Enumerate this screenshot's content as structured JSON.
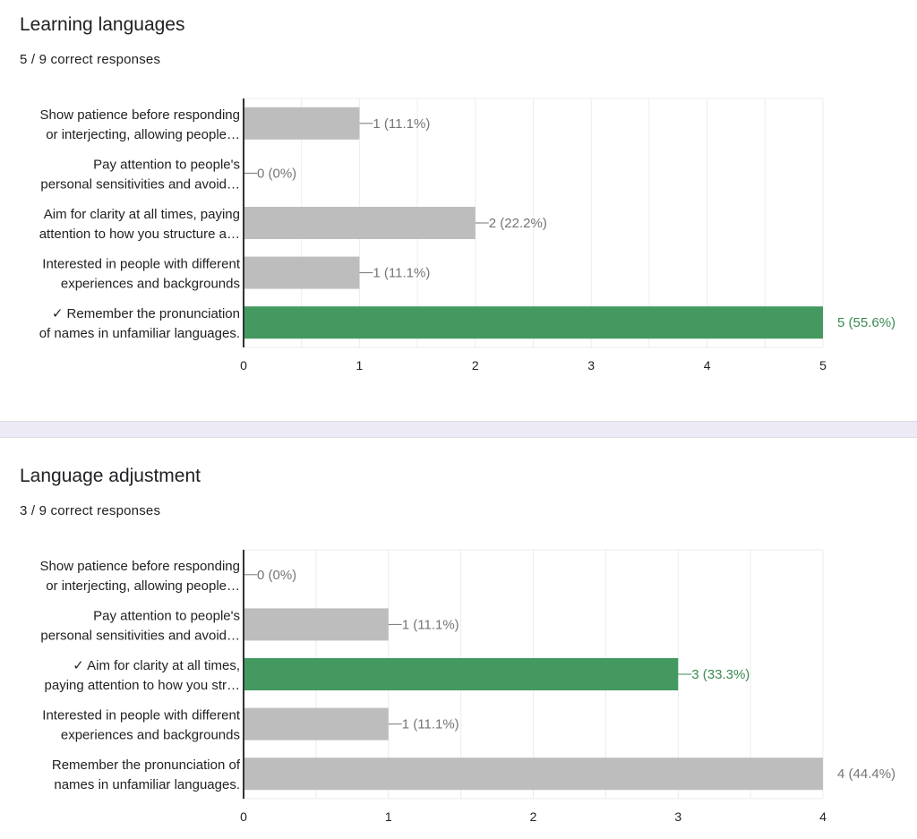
{
  "colors": {
    "bar": "#bdbdbd",
    "correct_bar": "#43995f",
    "label": "#757575",
    "correct_label": "#3a8a52",
    "grid": "#ececec",
    "axis": "#333333"
  },
  "chart_data": [
    {
      "type": "bar",
      "orientation": "horizontal",
      "title": "Learning languages",
      "subtitle": "5 / 9 correct responses",
      "categories": [
        [
          "Show patience before responding",
          "or interjecting, allowing people…"
        ],
        [
          "Pay attention to people's",
          "personal sensitivities and avoid…"
        ],
        [
          "Aim for clarity at all times, paying",
          "attention to how you structure a…"
        ],
        [
          "Interested in people with different",
          "experiences and backgrounds"
        ],
        [
          "✓ Remember the pronunciation",
          "of names in unfamiliar languages."
        ]
      ],
      "values": [
        1,
        0,
        2,
        1,
        5
      ],
      "value_labels": [
        "1 (11.1%)",
        "0 (0%)",
        "2 (22.2%)",
        "1 (11.1%)",
        "5 (55.6%)"
      ],
      "correct": [
        false,
        false,
        false,
        false,
        true
      ],
      "xlim": [
        0,
        5
      ],
      "xticks": [
        "0",
        "1",
        "2",
        "3",
        "4",
        "5"
      ],
      "grid": true
    },
    {
      "type": "bar",
      "orientation": "horizontal",
      "title": "Language adjustment",
      "subtitle": "3 / 9 correct responses",
      "categories": [
        [
          "Show patience before responding",
          "or interjecting, allowing people…"
        ],
        [
          "Pay attention to people's",
          "personal sensitivities and avoid…"
        ],
        [
          "✓ Aim for clarity at all times,",
          "paying attention to how you str…"
        ],
        [
          "Interested in people with different",
          "experiences and backgrounds"
        ],
        [
          "Remember the pronunciation of",
          "names in unfamiliar languages."
        ]
      ],
      "values": [
        0,
        1,
        3,
        1,
        4
      ],
      "value_labels": [
        "0 (0%)",
        "1 (11.1%)",
        "3 (33.3%)",
        "1 (11.1%)",
        "4 (44.4%)"
      ],
      "correct": [
        false,
        false,
        true,
        false,
        false
      ],
      "xlim": [
        0,
        4
      ],
      "xticks": [
        "0",
        "1",
        "2",
        "3",
        "4"
      ],
      "grid": true
    }
  ]
}
